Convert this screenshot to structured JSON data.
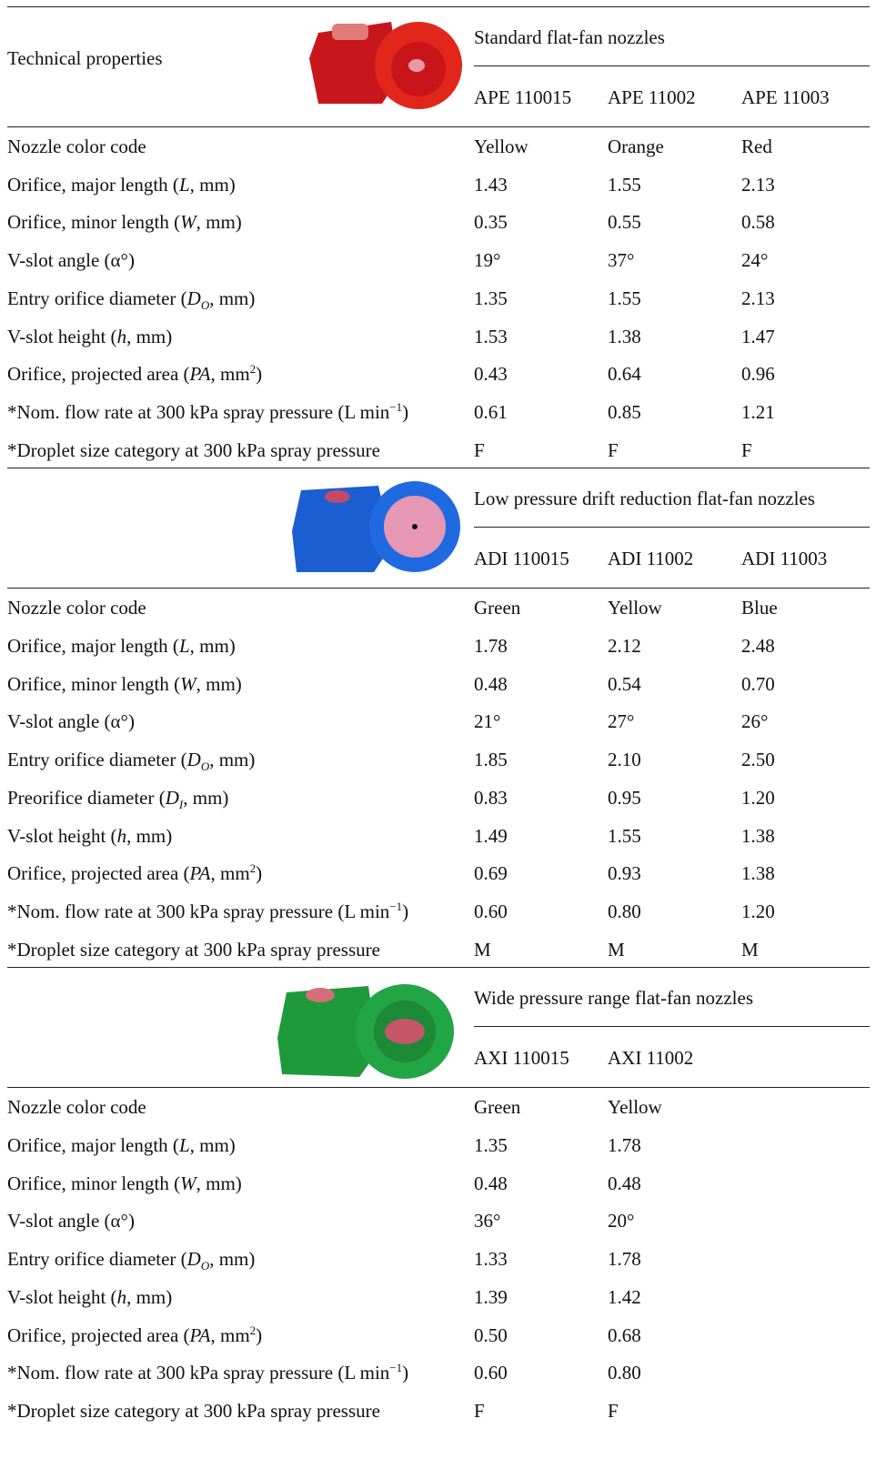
{
  "header": {
    "title": "Technical properties"
  },
  "sections": [
    {
      "title": "Standard flat-fan nozzles",
      "codes": [
        "APE 110015",
        "APE 11002",
        "APE 11003"
      ],
      "rows": [
        {
          "label": [
            "Nozzle color code"
          ],
          "values": [
            "Yellow",
            "Orange",
            "Red"
          ]
        },
        {
          "label": [
            "Orifice, major length (",
            {
              "italic": "L"
            },
            ", mm)"
          ],
          "values": [
            "1.43",
            "1.55",
            "2.13"
          ]
        },
        {
          "label": [
            "Orifice, minor length (",
            {
              "italic": "W"
            },
            ", mm)"
          ],
          "values": [
            "0.35",
            "0.55",
            "0.58"
          ]
        },
        {
          "label": [
            "V-slot angle (α°)"
          ],
          "values": [
            "19°",
            "37°",
            "24°"
          ]
        },
        {
          "label": [
            "Entry orifice diameter (",
            {
              "italic": "D"
            },
            {
              "sub": "O"
            },
            ", mm)"
          ],
          "values": [
            "1.35",
            "1.55",
            "2.13"
          ]
        },
        {
          "label": [
            "V-slot height (",
            {
              "italic": "h"
            },
            ", mm)"
          ],
          "values": [
            "1.53",
            "1.38",
            "1.47"
          ]
        },
        {
          "label": [
            "Orifice, projected area (",
            {
              "italic": "PA"
            },
            ", mm",
            {
              "sup": "2"
            },
            ")"
          ],
          "values": [
            "0.43",
            "0.64",
            "0.96"
          ]
        },
        {
          "label": [
            "*Nom. flow rate at 300 kPa spray pressure (L min",
            {
              "sup": "−1"
            },
            ")"
          ],
          "values": [
            "0.61",
            "0.85",
            "1.21"
          ]
        },
        {
          "label": [
            "*Droplet size category at 300 kPa spray pressure"
          ],
          "values": [
            "F",
            "F",
            "F"
          ]
        }
      ]
    },
    {
      "title": "Low pressure drift reduction flat-fan nozzles",
      "codes": [
        "ADI 110015",
        "ADI 11002",
        "ADI 11003"
      ],
      "rows": [
        {
          "label": [
            "Nozzle color code"
          ],
          "values": [
            "Green",
            "Yellow",
            "Blue"
          ]
        },
        {
          "label": [
            "Orifice, major length (",
            {
              "italic": "L"
            },
            ", mm)"
          ],
          "values": [
            "1.78",
            "2.12",
            "2.48"
          ]
        },
        {
          "label": [
            "Orifice, minor length (",
            {
              "italic": "W"
            },
            ", mm)"
          ],
          "values": [
            "0.48",
            "0.54",
            "0.70"
          ]
        },
        {
          "label": [
            "V-slot angle (α°)"
          ],
          "values": [
            "21°",
            "27°",
            "26°"
          ]
        },
        {
          "label": [
            "Entry orifice diameter (",
            {
              "italic": "D"
            },
            {
              "sub": "O"
            },
            ", mm)"
          ],
          "values": [
            "1.85",
            "2.10",
            "2.50"
          ]
        },
        {
          "label": [
            "Preorifice diameter (",
            {
              "italic": "D"
            },
            {
              "sub": "I"
            },
            ", mm)"
          ],
          "values": [
            "0.83",
            "0.95",
            "1.20"
          ]
        },
        {
          "label": [
            "V-slot height (",
            {
              "italic": "h"
            },
            ", mm)"
          ],
          "values": [
            "1.49",
            "1.55",
            "1.38"
          ]
        },
        {
          "label": [
            "Orifice, projected area (",
            {
              "italic": "PA"
            },
            ", mm",
            {
              "sup": "2"
            },
            ")"
          ],
          "values": [
            "0.69",
            "0.93",
            "1.38"
          ]
        },
        {
          "label": [
            "*Nom. flow rate at 300 kPa spray pressure (L min",
            {
              "sup": "−1"
            },
            ")"
          ],
          "values": [
            "0.60",
            "0.80",
            "1.20"
          ]
        },
        {
          "label": [
            "*Droplet size category at 300 kPa spray pressure"
          ],
          "values": [
            "M",
            "M",
            "M"
          ]
        }
      ]
    },
    {
      "title": "Wide pressure range flat-fan nozzles",
      "codes": [
        "AXI 110015",
        "AXI 11002"
      ],
      "rows": [
        {
          "label": [
            "Nozzle color code"
          ],
          "values": [
            "Green",
            "Yellow"
          ]
        },
        {
          "label": [
            "Orifice, major length (",
            {
              "italic": "L"
            },
            ", mm)"
          ],
          "values": [
            "1.35",
            "1.78"
          ]
        },
        {
          "label": [
            "Orifice, minor length (",
            {
              "italic": "W"
            },
            ", mm)"
          ],
          "values": [
            "0.48",
            "0.48"
          ]
        },
        {
          "label": [
            "V-slot angle (α°)"
          ],
          "values": [
            "36°",
            "20°"
          ]
        },
        {
          "label": [
            "Entry orifice diameter (",
            {
              "italic": "D"
            },
            {
              "sub": "O"
            },
            ", mm)"
          ],
          "values": [
            "1.33",
            "1.78"
          ]
        },
        {
          "label": [
            "V-slot height (",
            {
              "italic": "h"
            },
            ", mm)"
          ],
          "values": [
            "1.39",
            "1.42"
          ]
        },
        {
          "label": [
            "Orifice, projected area (",
            {
              "italic": "PA"
            },
            ", mm",
            {
              "sup": "2"
            },
            ")"
          ],
          "values": [
            "0.50",
            "0.68"
          ]
        },
        {
          "label": [
            "*Nom. flow rate at 300 kPa spray pressure (L min",
            {
              "sup": "−1"
            },
            ")"
          ],
          "values": [
            "0.60",
            "0.80"
          ]
        },
        {
          "label": [
            "*Droplet size category at 300 kPa spray pressure"
          ],
          "values": [
            "F",
            "F"
          ]
        }
      ]
    }
  ]
}
